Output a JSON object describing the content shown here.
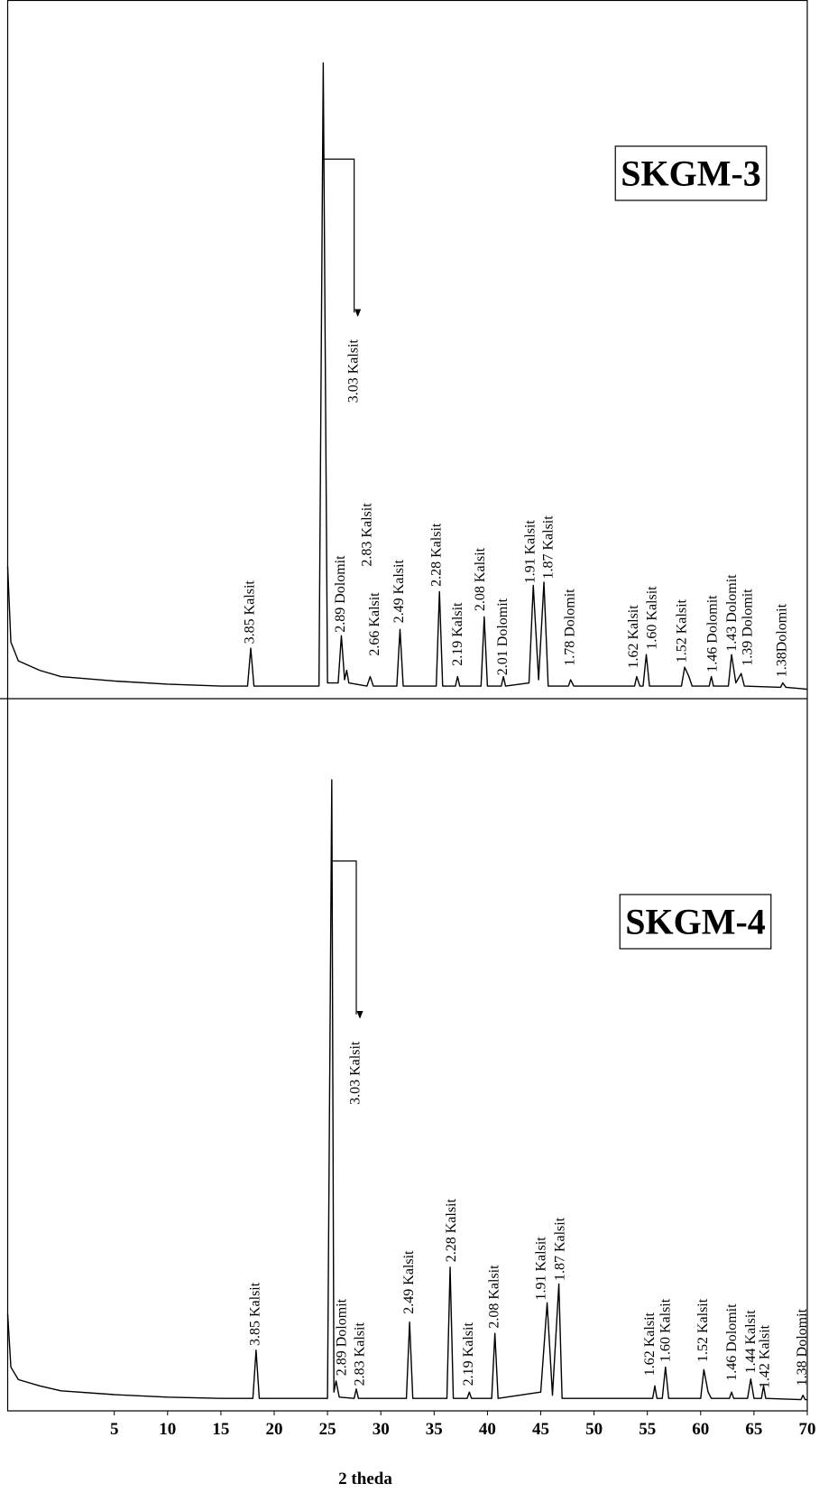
{
  "chart_data": [
    {
      "type": "line",
      "title": "SKGM-3",
      "color": "#000000",
      "xlim": [
        -5,
        70
      ],
      "ylim": [
        -1,
        110
      ],
      "x": [
        -5,
        -4.7,
        -4,
        -2,
        0,
        5,
        10,
        15,
        17.5,
        17.8,
        18.1,
        24.2,
        24.6,
        25.0,
        26.0,
        26.3,
        26.6,
        26.8,
        27.0,
        28.7,
        29.0,
        29.3,
        31.5,
        31.8,
        32.1,
        35.2,
        35.5,
        35.8,
        37.0,
        37.2,
        37.4,
        39.4,
        39.7,
        40.0,
        41.3,
        41.5,
        41.7,
        43.9,
        44.3,
        44.8,
        45.3,
        45.7,
        47.6,
        47.8,
        48.1,
        53.8,
        54.0,
        54.3,
        54.6,
        54.9,
        55.2,
        58.2,
        58.5,
        58.9,
        59.2,
        60.8,
        61.0,
        61.2,
        62.6,
        62.9,
        63.3,
        63.8,
        64.1,
        67.5,
        67.7,
        68.0,
        70
      ],
      "values": [
        20,
        8,
        5,
        3.5,
        2.5,
        1.8,
        1.3,
        1,
        1,
        7,
        1,
        1,
        100,
        1.5,
        1.5,
        9,
        2,
        3.5,
        1.5,
        1,
        2.5,
        1,
        1,
        10,
        1,
        1,
        16,
        1,
        1,
        2.5,
        1,
        1,
        12,
        1,
        1,
        2.5,
        1,
        1.5,
        17,
        2,
        17.5,
        1,
        1,
        2,
        1,
        1,
        2.5,
        1,
        1,
        6,
        1,
        1,
        4,
        2.5,
        1,
        1,
        2.5,
        1,
        1,
        6,
        1.5,
        3,
        1,
        0.8,
        1.5,
        0.8,
        0.5
      ],
      "annotations": [
        {
          "text": "3.85 Kalsit",
          "x": 17.8,
          "y": 7.7
        },
        {
          "text": "3.03 Kalsit",
          "x": 27.5,
          "y": 46
        },
        {
          "text": "2.89 Dolomit",
          "x": 26.3,
          "y": 9.5
        },
        {
          "text": "2.83 Kalsit",
          "x": 28.8,
          "y": 20
        },
        {
          "text": "2.66 Kalsit",
          "x": 29.5,
          "y": 5.8
        },
        {
          "text": "2.49 Kalsit",
          "x": 31.8,
          "y": 11
        },
        {
          "text": "2.28 Kalsit",
          "x": 35.3,
          "y": 16.8
        },
        {
          "text": "2.19 Kalsit",
          "x": 37.3,
          "y": 4.2
        },
        {
          "text": "2.08 Kalsit",
          "x": 39.4,
          "y": 12.9
        },
        {
          "text": "2.01 Dolomit",
          "x": 41.5,
          "y": 2.7
        },
        {
          "text": "1.91 Kalsit",
          "x": 44.1,
          "y": 17.3
        },
        {
          "text": "1.87 Kalsit",
          "x": 45.8,
          "y": 18
        },
        {
          "text": "1.78 Dolomit",
          "x": 47.8,
          "y": 4.2
        },
        {
          "text": "1.62 Kalsit",
          "x": 53.8,
          "y": 3.8
        },
        {
          "text": "1.60 Kalsit",
          "x": 55.5,
          "y": 6.8
        },
        {
          "text": "1.52 Kalsit",
          "x": 58.3,
          "y": 4.7
        },
        {
          "text": "1.46 Dolomit",
          "x": 61.2,
          "y": 3.2
        },
        {
          "text": "1.43 Dolomit",
          "x": 63.0,
          "y": 6.5
        },
        {
          "text": "1.39 Dolomit",
          "x": 64.5,
          "y": 4.2
        },
        {
          "text": "1.38Dolomit",
          "x": 67.7,
          "y": 2.4
        }
      ]
    },
    {
      "type": "line",
      "title": "SKGM-4",
      "color": "#000000",
      "xlim": [
        -5,
        70
      ],
      "ylim": [
        -1,
        113
      ],
      "xticks": [
        5,
        10,
        15,
        20,
        25,
        30,
        35,
        40,
        45,
        50,
        55,
        60,
        65,
        70
      ],
      "xlabel": "2 theda",
      "x": [
        -5,
        -4.7,
        -4,
        -2,
        0,
        5,
        10,
        15,
        18.0,
        18.3,
        18.6,
        25.0,
        25.4,
        25.6,
        25.8,
        26.1,
        27.5,
        27.7,
        27.9,
        32.4,
        32.7,
        33.0,
        36.2,
        36.5,
        36.8,
        38.1,
        38.3,
        38.5,
        40.4,
        40.7,
        41.0,
        45.0,
        45.6,
        46.1,
        46.7,
        47.0,
        55.5,
        55.7,
        55.9,
        56.4,
        56.7,
        57.0,
        60.0,
        60.3,
        60.7,
        61.0,
        62.7,
        62.9,
        63.1,
        64.4,
        64.7,
        65.0,
        65.7,
        65.9,
        66.1,
        69.4,
        69.6,
        69.8,
        70
      ],
      "values": [
        14.5,
        6,
        4,
        3,
        2.2,
        1.6,
        1.2,
        1,
        1,
        8.7,
        1,
        1,
        100,
        2,
        3.8,
        1.2,
        1,
        2.5,
        1,
        1,
        13.2,
        1,
        1,
        22,
        1,
        1,
        2,
        1,
        1,
        11.4,
        1,
        2,
        16.3,
        1.5,
        19.3,
        1,
        1,
        3,
        1,
        1,
        6,
        1,
        1,
        5.6,
        2,
        1,
        1,
        2,
        1,
        1,
        4.1,
        1,
        1,
        3,
        1,
        0.8,
        1.5,
        0.8,
        0.8
      ],
      "annotations": [
        {
          "text": "3.85 Kalsit",
          "x": 18.3,
          "y": 9.4
        },
        {
          "text": "3.03 Kalsit",
          "x": 27.7,
          "y": 48
        },
        {
          "text": "2.89 Dolomit",
          "x": 26.4,
          "y": 4.6
        },
        {
          "text": "2.83 Kalsit",
          "x": 28.1,
          "y": 3
        },
        {
          "text": "2.49 Kalsit",
          "x": 32.7,
          "y": 14.5
        },
        {
          "text": "2.28 Kalsit",
          "x": 36.7,
          "y": 22.8
        },
        {
          "text": "2.19 Kalsit",
          "x": 38.3,
          "y": 3
        },
        {
          "text": "2.08 Kalsit",
          "x": 40.7,
          "y": 12.2
        },
        {
          "text": "1.91 Kalsit",
          "x": 45.1,
          "y": 16.7
        },
        {
          "text": "1.87 Kalsit",
          "x": 46.9,
          "y": 19.8
        },
        {
          "text": "1.62 Kalsit",
          "x": 55.3,
          "y": 4.6
        },
        {
          "text": "1.60 Kalsit",
          "x": 56.8,
          "y": 6.8
        },
        {
          "text": "1.52 Kalsit",
          "x": 60.3,
          "y": 6.8
        },
        {
          "text": "1.46 Dolomit",
          "x": 63.0,
          "y": 3.8
        },
        {
          "text": "1.44 Kalsit",
          "x": 64.8,
          "y": 5
        },
        {
          "text": "1.42 Kalsit",
          "x": 66.1,
          "y": 2.6
        },
        {
          "text": "1.38 Dolomit",
          "x": 69.6,
          "y": 3
        }
      ]
    }
  ]
}
